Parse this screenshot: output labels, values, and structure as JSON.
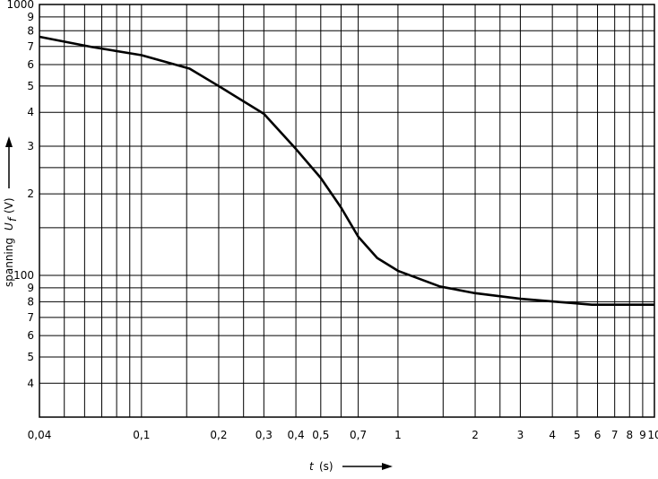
{
  "chart_data": {
    "type": "line",
    "xlabel": {
      "var": "t",
      "unit": "(s)"
    },
    "ylabel": {
      "text": "spanning",
      "var": "U",
      "sub": "f",
      "unit": "(V)"
    },
    "xscale": "log",
    "yscale": "log",
    "grid": true,
    "xlim": [
      0.04,
      10
    ],
    "ylim": [
      30,
      1000
    ],
    "xticks": [
      {
        "value": 0.04,
        "label": "0,04"
      },
      {
        "value": 0.1,
        "label": "0,1"
      },
      {
        "value": 0.2,
        "label": "0,2"
      },
      {
        "value": 0.3,
        "label": "0,3"
      },
      {
        "value": 0.4,
        "label": "0,4"
      },
      {
        "value": 0.5,
        "label": "0,5"
      },
      {
        "value": 0.7,
        "label": "0,7"
      },
      1,
      2,
      3,
      4,
      5,
      6,
      7,
      8,
      9,
      10
    ],
    "yticks": [
      1000,
      {
        "value": 900,
        "label": "9"
      },
      {
        "value": 800,
        "label": "8"
      },
      {
        "value": 700,
        "label": "7"
      },
      {
        "value": 600,
        "label": "6"
      },
      {
        "value": 500,
        "label": "5"
      },
      {
        "value": 400,
        "label": "4"
      },
      {
        "value": 300,
        "label": "3"
      },
      {
        "value": 200,
        "label": "2"
      },
      100,
      {
        "value": 90,
        "label": "9"
      },
      {
        "value": 80,
        "label": "8"
      },
      {
        "value": 70,
        "label": "7"
      },
      {
        "value": 60,
        "label": "6"
      },
      {
        "value": 50,
        "label": "5"
      },
      {
        "value": 40,
        "label": "4"
      }
    ],
    "x_minor_grid": [
      0.05,
      0.06,
      0.07,
      0.08,
      0.09,
      0.15,
      0.25,
      0.6,
      1.5,
      2.5
    ],
    "y_minor_grid": [
      150,
      250
    ],
    "series": [
      {
        "color": "#000000",
        "x": [
          0.04,
          0.064,
          0.1,
          0.154,
          0.2,
          0.3,
          0.4,
          0.5,
          0.6,
          0.7,
          0.83,
          1,
          1.46,
          2,
          3,
          4.1,
          5.7,
          10
        ],
        "values": [
          760,
          697,
          650,
          580,
          500,
          395,
          293,
          229,
          178,
          139,
          116,
          104,
          91,
          86,
          82,
          80,
          78,
          78
        ]
      }
    ]
  }
}
